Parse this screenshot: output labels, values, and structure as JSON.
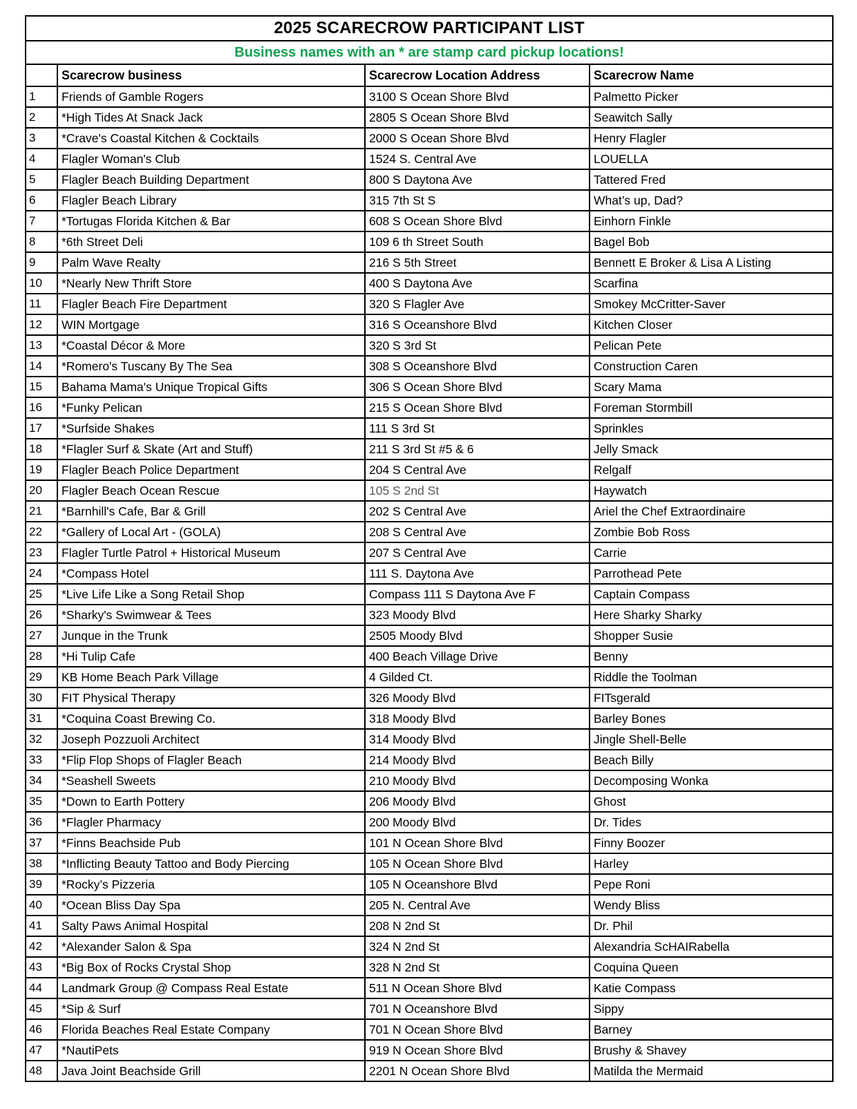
{
  "title": "2025 SCARECROW PARTICIPANT LIST",
  "subtitle": "Business names with an * are stamp card pickup locations!",
  "colors": {
    "subtitle_green": "#12a150",
    "muted_gray": "#595959",
    "border_black": "#000000"
  },
  "table": {
    "headers": {
      "number": "",
      "business": "Scarecrow business",
      "address": "Scarecrow Location Address",
      "name": "Scarecrow Name"
    },
    "rows": [
      {
        "num": "1",
        "business": "Friends of Gamble Rogers",
        "address": "3100 S Ocean Shore Blvd",
        "name": "Palmetto Picker"
      },
      {
        "num": "2",
        "business": "*High Tides At Snack Jack",
        "address": "2805 S Ocean Shore Blvd",
        "name": "Seawitch Sally"
      },
      {
        "num": "3",
        "business": "*Crave's Coastal Kitchen & Cocktails",
        "address": "2000 S Ocean Shore Blvd",
        "name": "Henry Flagler"
      },
      {
        "num": "4",
        "business": "Flagler Woman's Club",
        "address": "1524 S. Central Ave",
        "name": "LOUELLA"
      },
      {
        "num": "5",
        "business": "Flagler Beach Building Department",
        "address": "800 S Daytona Ave",
        "name": "Tattered Fred"
      },
      {
        "num": "6",
        "business": "Flagler Beach Library",
        "address": "315 7th St S",
        "name": "What’s up, Dad?"
      },
      {
        "num": "7",
        "business": "*Tortugas Florida Kitchen & Bar",
        "address": "608 S Ocean Shore Blvd",
        "name": "Einhorn Finkle"
      },
      {
        "num": "8",
        "business": "*6th Street Deli",
        "address": "109 6 th Street South",
        "name": "Bagel Bob"
      },
      {
        "num": "9",
        "business": "Palm Wave Realty",
        "address": "216 S 5th Street",
        "name": "Bennett E Broker & Lisa A Listing"
      },
      {
        "num": "10",
        "business": "*Nearly New Thrift Store",
        "address": "400 S Daytona Ave",
        "name": "Scarfina"
      },
      {
        "num": "11",
        "business": "Flagler Beach Fire Department",
        "address": "320 S Flagler Ave",
        "name": "Smokey McCritter-Saver"
      },
      {
        "num": "12",
        "business": "WIN Mortgage",
        "address": "316 S Oceanshore Blvd",
        "name": "Kitchen Closer"
      },
      {
        "num": "13",
        "business": "*Coastal Décor & More",
        "address": "320 S 3rd St",
        "name": "Pelican Pete"
      },
      {
        "num": "14",
        "business": "*Romero's Tuscany By The Sea",
        "address": "308 S Oceanshore Blvd",
        "name": "Construction Caren"
      },
      {
        "num": "15",
        "business": "Bahama Mama's Unique Tropical Gifts",
        "address": "306 S Ocean Shore Blvd",
        "name": "Scary Mama"
      },
      {
        "num": "16",
        "business": "*Funky Pelican",
        "address": "215 S Ocean Shore Blvd",
        "name": "Foreman Stormbill"
      },
      {
        "num": "17",
        "business": "*Surfside Shakes",
        "address": "111 S 3rd St",
        "name": "Sprinkles"
      },
      {
        "num": "18",
        "business": "*Flagler Surf & Skate (Art and Stuff)",
        "address": "211 S 3rd St #5 & 6",
        "name": "Jelly Smack"
      },
      {
        "num": "19",
        "business": "Flagler Beach Police Department",
        "address": "204 S Central Ave",
        "name": "Relgalf"
      },
      {
        "num": "20",
        "business": "Flagler Beach Ocean Rescue",
        "address": "105 S 2nd St",
        "name": "Haywatch",
        "muted_address": true
      },
      {
        "num": "21",
        "business": "*Barnhill's Cafe, Bar & Grill",
        "address": "202 S Central Ave",
        "name": "Ariel the Chef Extraordinaire"
      },
      {
        "num": "22",
        "business": "*Gallery of Local Art - (GOLA)",
        "address": "208 S Central Ave",
        "name": "Zombie Bob Ross"
      },
      {
        "num": "23",
        "business": "Flagler Turtle Patrol + Historical Museum",
        "address": "207 S Central Ave",
        "name": "Carrie"
      },
      {
        "num": "24",
        "business": "*Compass Hotel",
        "address": "111 S. Daytona Ave",
        "name": "Parrothead Pete"
      },
      {
        "num": "25",
        "business": "*Live Life Like a Song Retail Shop",
        "address": "Compass 111 S Daytona Ave F",
        "name": "Captain Compass"
      },
      {
        "num": "26",
        "business": "*Sharky's Swimwear & Tees",
        "address": "323 Moody Blvd",
        "name": "Here Sharky Sharky"
      },
      {
        "num": "27",
        "business": "Junque in the Trunk",
        "address": "2505 Moody Blvd",
        "name": "Shopper Susie"
      },
      {
        "num": "28",
        "business": "*Hi Tulip Cafe",
        "address": "400 Beach Village Drive",
        "name": "Benny"
      },
      {
        "num": "29",
        "business": "KB Home Beach Park Village",
        "address": "4 Gilded Ct.",
        "name": "Riddle the Toolman"
      },
      {
        "num": "30",
        "business": "FIT Physical Therapy",
        "address": "326 Moody Blvd",
        "name": "FITsgerald"
      },
      {
        "num": "31",
        "business": "*Coquina Coast Brewing Co.",
        "address": "318 Moody Blvd",
        "name": "Barley Bones"
      },
      {
        "num": "32",
        "business": "Joseph Pozzuoli Architect",
        "address": "314 Moody Blvd",
        "name": "Jingle Shell-Belle"
      },
      {
        "num": "33",
        "business": "*Flip Flop Shops of Flagler Beach",
        "address": "214 Moody Blvd",
        "name": "Beach Billy"
      },
      {
        "num": "34",
        "business": "*Seashell Sweets",
        "address": "210 Moody Blvd",
        "name": "Decomposing Wonka"
      },
      {
        "num": "35",
        "business": "*Down to Earth Pottery",
        "address": "206 Moody Blvd",
        "name": "Ghost"
      },
      {
        "num": "36",
        "business": "*Flagler Pharmacy",
        "address": "200 Moody Blvd",
        "name": "Dr. Tides"
      },
      {
        "num": "37",
        "business": "*Finns Beachside Pub",
        "address": "101 N Ocean Shore Blvd",
        "name": "Finny Boozer"
      },
      {
        "num": "38",
        "business": "*Inflicting Beauty Tattoo and Body Piercing",
        "address": "105 N Ocean Shore Blvd",
        "name": "Harley"
      },
      {
        "num": "39",
        "business": "*Rocky’s Pizzeria",
        "address": "105 N Oceanshore Blvd",
        "name": "Pepe Roni"
      },
      {
        "num": "40",
        "business": "*Ocean Bliss Day Spa",
        "address": "205 N. Central Ave",
        "name": "Wendy Bliss"
      },
      {
        "num": "41",
        "business": "Salty Paws Animal Hospital",
        "address": "208 N 2nd St",
        "name": "Dr. Phil"
      },
      {
        "num": "42",
        "business": "*Alexander Salon & Spa",
        "address": "324 N 2nd St",
        "name": "Alexandria ScHAIRabella"
      },
      {
        "num": "43",
        "business": "*Big Box of Rocks Crystal Shop",
        "address": "328 N 2nd St",
        "name": "Coquina Queen"
      },
      {
        "num": "44",
        "business": "Landmark Group @ Compass Real Estate",
        "address": "511 N Ocean Shore Blvd",
        "name": "Katie Compass"
      },
      {
        "num": "45",
        "business": "*Sip & Surf",
        "address": "701 N Oceanshore Blvd",
        "name": "Sippy"
      },
      {
        "num": "46",
        "business": "Florida Beaches Real Estate Company",
        "address": "701 N Ocean Shore Blvd",
        "name": "Barney"
      },
      {
        "num": "47",
        "business": "*NautiPets",
        "address": "919 N Ocean Shore Blvd",
        "name": "Brushy & Shavey"
      },
      {
        "num": "48",
        "business": "Java Joint Beachside Grill",
        "address": "2201 N Ocean Shore Blvd",
        "name": "Matilda the Mermaid"
      }
    ]
  }
}
